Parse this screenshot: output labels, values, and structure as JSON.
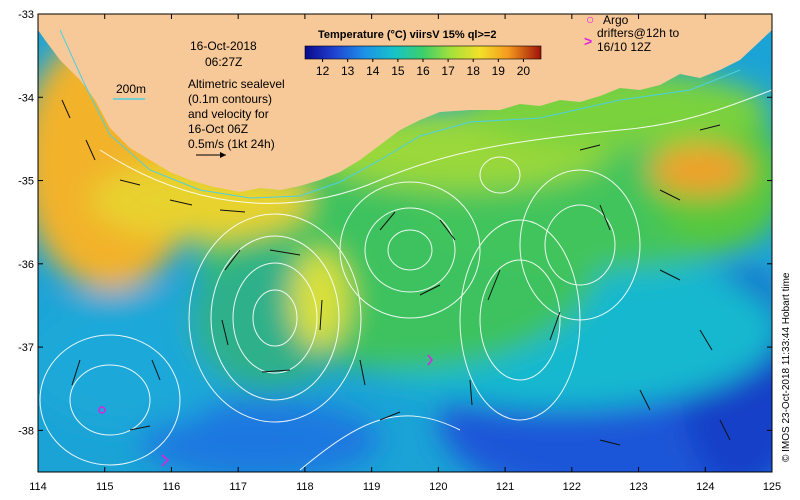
{
  "map": {
    "date": "16-Oct-2018",
    "time": "06:27Z",
    "colorbar_title": "Temperature (°C) viirsV 15% ql>=2",
    "colorbar_ticks": [
      "12",
      "13",
      "14",
      "15",
      "16",
      "17",
      "18",
      "19",
      "20"
    ],
    "colorbar_range": [
      11.3,
      20.7
    ],
    "legend_argo_symbol": "○",
    "legend_argo_text": "Argo",
    "legend_drifters_symbol": ">",
    "legend_drifters_line1": "drifters@12h to",
    "legend_drifters_line2": "16/10 12Z",
    "isobath_label": "200m",
    "sealevel_note": [
      "Altimetric sealevel",
      "(0.1m contours)",
      "and velocity for",
      "16-Oct 06Z",
      "0.5m/s (1kt 24h)"
    ],
    "lon_ticks": [
      "114",
      "115",
      "116",
      "117",
      "118",
      "119",
      "120",
      "121",
      "122",
      "123",
      "124",
      "125"
    ],
    "lat_ticks": [
      "-33",
      "-34",
      "-35",
      "-36",
      "-37",
      "-38"
    ],
    "lon_range": [
      114,
      125
    ],
    "lat_range": [
      -38.5,
      -33
    ],
    "credit": "© IMOS 23-Oct-2018 11:33:44 Hobart time",
    "colors": {
      "land": "#f7c898",
      "warm_shelf": "#f5a623",
      "mid_water": "#56c83a",
      "cool_water": "#16b7c4",
      "cold_water": "#1f3fd0",
      "contour": "#ffffff",
      "isobath": "#4fd0e0",
      "argo": "#e020e0"
    }
  }
}
